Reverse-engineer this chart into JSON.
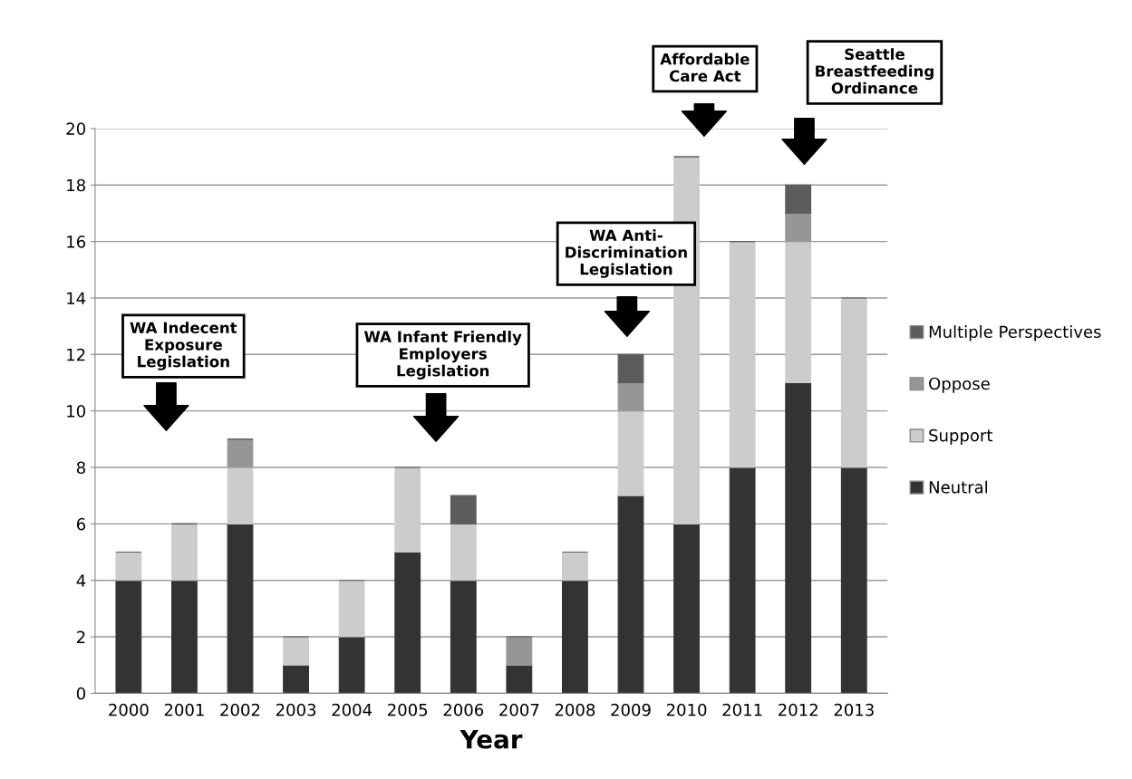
{
  "chart_data": {
    "type": "bar",
    "stacked": true,
    "xlabel": "Year",
    "categories": [
      "2000",
      "2001",
      "2002",
      "2003",
      "2004",
      "2005",
      "2006",
      "2007",
      "2008",
      "2009",
      "2010",
      "2011",
      "2012",
      "2013"
    ],
    "series": [
      {
        "name": "Neutral",
        "color": "#333333",
        "values": [
          4,
          4,
          6,
          1,
          2,
          5,
          4,
          1,
          4,
          7,
          6,
          8,
          11,
          8
        ]
      },
      {
        "name": "Support",
        "color": "#cccccc",
        "values": [
          1,
          2,
          2,
          1,
          2,
          3,
          2,
          0,
          1,
          3,
          13,
          8,
          5,
          6
        ]
      },
      {
        "name": "Oppose",
        "color": "#969696",
        "values": [
          0,
          0,
          1,
          0,
          0,
          0,
          0,
          1,
          0,
          1,
          0,
          0,
          1,
          0
        ]
      },
      {
        "name": "Multiple Perspectives",
        "color": "#5c5c5c",
        "values": [
          0,
          0,
          0,
          0,
          0,
          0,
          1,
          0,
          0,
          1,
          0,
          0,
          1,
          0
        ]
      }
    ],
    "ylim": [
      0,
      20
    ],
    "yticks": [
      0,
      2,
      4,
      6,
      8,
      10,
      12,
      14,
      16,
      18,
      20
    ],
    "grid": "y",
    "legend": "right",
    "annotations": [
      "WA Indecent\nExposure\nLegislation",
      "WA Infant Friendly\nEmployers\nLegislation",
      "WA Anti-\nDiscrimination\nLegislation",
      "Affordable\nCare Act",
      "Seattle\nBreastfeeding\nOrdinance"
    ]
  }
}
